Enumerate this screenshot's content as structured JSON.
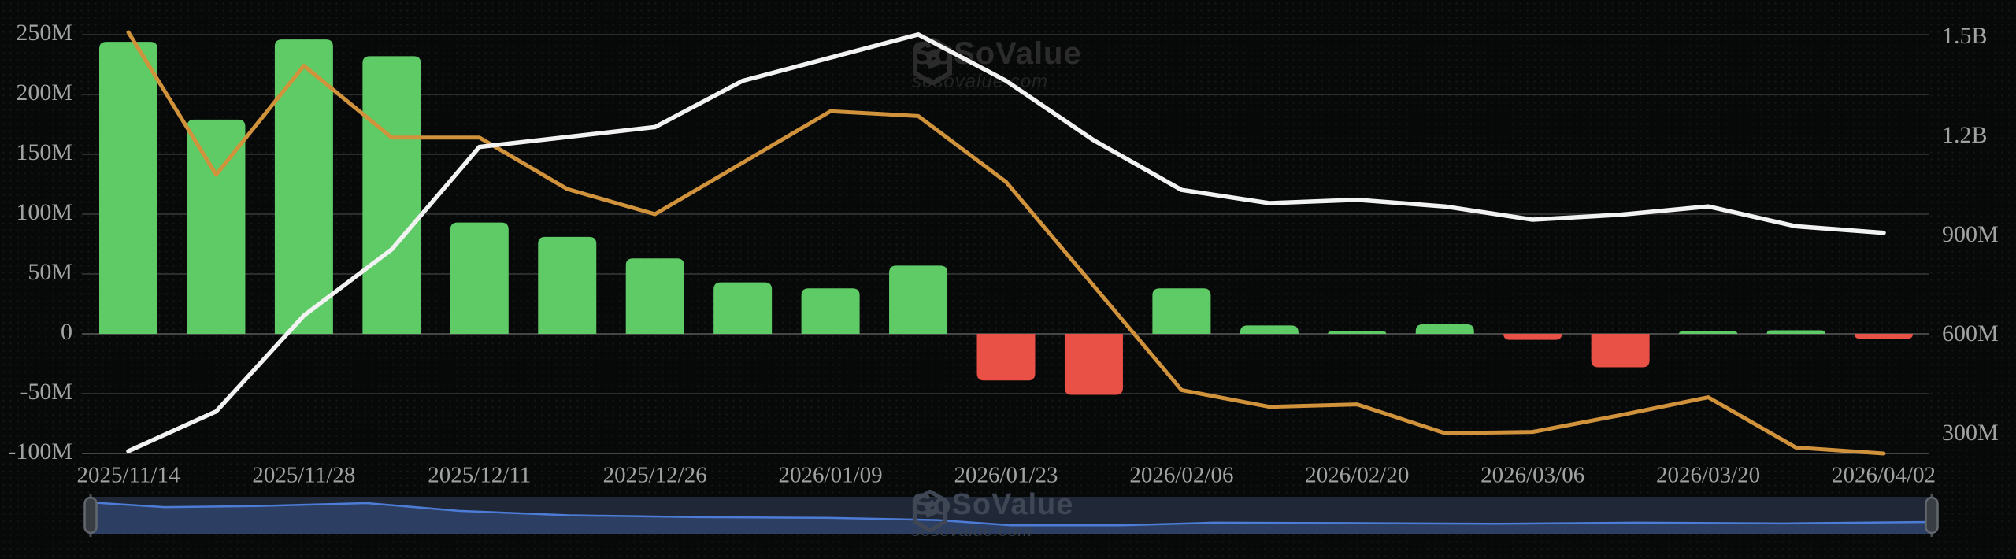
{
  "watermark": {
    "brand": "SoSoValue",
    "domain": "sosovalue.com"
  },
  "colors": {
    "background": "#070808",
    "grid": "#2d2d2d",
    "grid_strong": "#464646",
    "bar_positive": "#5ecb66",
    "bar_negative": "#e95046",
    "line_total": "#f2f2f2",
    "line_secondary": "#d1923c",
    "axis_text": "#a2a2a2",
    "navigator_bg": "#202838",
    "navigator_fill": "#2c3f63",
    "navigator_line": "#4d7cd6",
    "navigator_handle": "#383d44",
    "navigator_handle_border": "#63686f",
    "navigator_stem": "#4a4f55"
  },
  "chart_data": {
    "type": "bar",
    "title": "",
    "xlabel": "",
    "ylabel": "",
    "x_tick_labels": [
      "2025/11/14",
      "2025/11/28",
      "2025/12/11",
      "2025/12/26",
      "2026/01/09",
      "2026/01/23",
      "2026/02/06",
      "2026/02/20",
      "2026/03/06",
      "2026/03/20",
      "2026/04/02"
    ],
    "x_tick_week_indices": [
      0,
      2,
      4,
      6,
      8,
      10,
      12,
      14,
      16,
      18,
      20
    ],
    "weeks_count": 21,
    "series": [
      {
        "name": "weekly-net-flow-bars",
        "type": "bar",
        "axis": "left",
        "unit": "M USD",
        "values": [
          244,
          179,
          246,
          232,
          93,
          81,
          63,
          43,
          38,
          57,
          -39,
          -51,
          38,
          7,
          2,
          8,
          -5,
          -28,
          2,
          3,
          -4
        ]
      },
      {
        "name": "total-value-line",
        "type": "line",
        "axis": "right",
        "unit": "M USD",
        "values": [
          250,
          370,
          660,
          860,
          1170,
          1200,
          1230,
          1370,
          1440,
          1510,
          1370,
          1190,
          1040,
          1000,
          1010,
          990,
          950,
          965,
          990,
          930,
          910
        ]
      },
      {
        "name": "secondary-orange-line",
        "type": "line",
        "axis": "left",
        "unit": "M USD",
        "values": [
          252,
          133,
          224,
          164,
          164,
          121,
          100,
          143,
          186,
          182,
          127,
          40,
          -47,
          -61,
          -59,
          -83,
          -82,
          -68,
          -53,
          -95,
          -100
        ]
      }
    ],
    "left_axis": {
      "tick_labels": [
        "250M",
        "200M",
        "150M",
        "100M",
        "50M",
        "0",
        "-50M",
        "-100M"
      ],
      "tick_values": [
        250,
        200,
        150,
        100,
        50,
        0,
        -50,
        -100
      ],
      "min": -100,
      "max": 250
    },
    "right_axis": {
      "tick_labels": [
        "1.5B",
        "1.2B",
        "900M",
        "600M",
        "300M"
      ],
      "tick_values": [
        1500,
        1200,
        900,
        600,
        300
      ],
      "min": 300,
      "max": 1500
    },
    "grid": true,
    "legend_position": "none"
  },
  "navigator": {
    "profile_points": [
      [
        0,
        0.15
      ],
      [
        0.04,
        0.28
      ],
      [
        0.09,
        0.25
      ],
      [
        0.15,
        0.17
      ],
      [
        0.2,
        0.38
      ],
      [
        0.26,
        0.5
      ],
      [
        0.33,
        0.55
      ],
      [
        0.4,
        0.57
      ],
      [
        0.46,
        0.63
      ],
      [
        0.5,
        0.77
      ],
      [
        0.56,
        0.77
      ],
      [
        0.61,
        0.7
      ],
      [
        0.68,
        0.71
      ],
      [
        0.76,
        0.73
      ],
      [
        0.84,
        0.7
      ],
      [
        0.92,
        0.72
      ],
      [
        1,
        0.68
      ]
    ]
  }
}
